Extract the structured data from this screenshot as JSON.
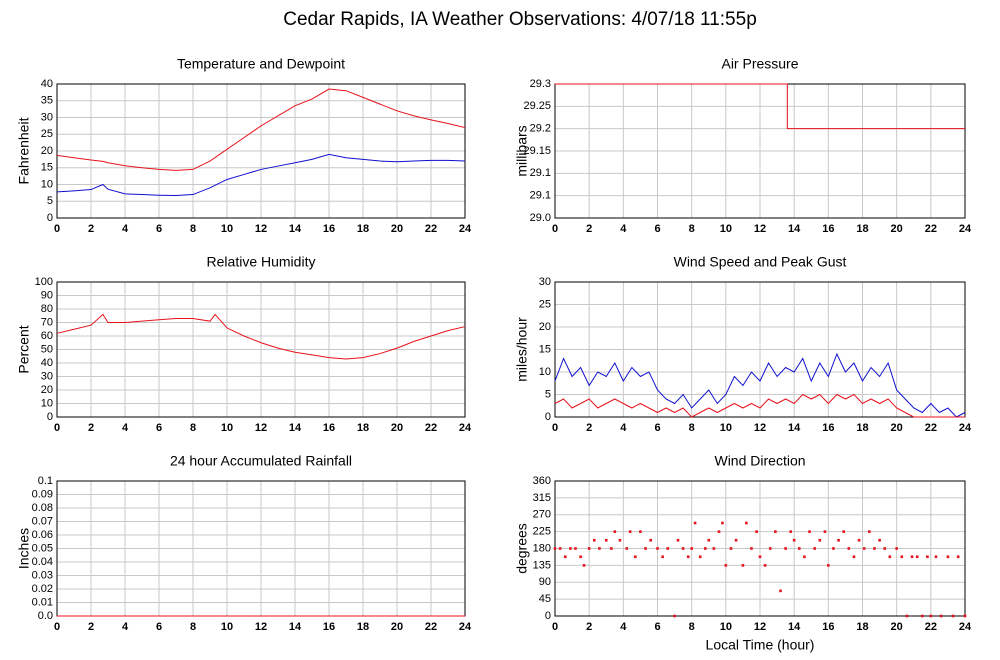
{
  "title": "Cedar Rapids, IA Weather Observations: 4/07/18 11:55p",
  "chart_data": [
    {
      "type": "line",
      "title": "Temperature and Dewpoint",
      "ylabel": "Fahrenheit",
      "x": [
        0,
        1,
        2,
        2.7,
        3,
        4,
        5,
        6,
        7,
        8,
        9,
        10,
        11,
        12,
        13,
        14,
        15,
        16,
        17,
        18,
        19,
        20,
        21,
        22,
        23,
        24
      ],
      "series": [
        {
          "color": "#e8121b",
          "values": [
            18.7,
            18,
            17.3,
            16.9,
            16.5,
            15.6,
            15,
            14.5,
            14.2,
            14.5,
            17,
            20.5,
            24,
            27.5,
            30.5,
            33.5,
            35.5,
            38.5,
            38,
            36,
            34,
            32,
            30.5,
            29.3,
            28.2,
            27
          ]
        },
        {
          "color": "#1010d0",
          "values": [
            7.8,
            8.1,
            8.5,
            10,
            8.6,
            7.2,
            7,
            6.8,
            6.7,
            7,
            9,
            11.5,
            13,
            14.5,
            15.5,
            16.5,
            17.5,
            19,
            18,
            17.5,
            17,
            16.8,
            17,
            17.2,
            17.2,
            17
          ]
        }
      ],
      "xlim": [
        0,
        24
      ],
      "xticks": [
        0,
        2,
        4,
        6,
        8,
        10,
        12,
        14,
        16,
        18,
        20,
        22,
        24
      ],
      "ylim": [
        0,
        40
      ],
      "yticks": [
        0,
        5,
        10,
        15,
        20,
        25,
        30,
        35,
        40
      ],
      "grid": true
    },
    {
      "type": "line",
      "title": "Air Pressure",
      "ylabel": "millibars",
      "x": [
        0,
        13.6,
        13.6,
        24
      ],
      "series": [
        {
          "color": "#e8121b",
          "values": [
            29.3,
            29.3,
            29.2,
            29.2
          ]
        }
      ],
      "xlim": [
        0,
        24
      ],
      "xticks": [
        0,
        2,
        4,
        6,
        8,
        10,
        12,
        14,
        16,
        18,
        20,
        22,
        24
      ],
      "ylim": [
        29,
        29.3
      ],
      "yticks": [
        {
          "value": 29,
          "label": "29.0"
        },
        {
          "value": 29.05,
          "label": "29.1"
        },
        29.1,
        29.15,
        29.2,
        29.25,
        29.3
      ],
      "grid": true
    },
    {
      "type": "line",
      "title": "Relative Humidity",
      "ylabel": "Percent",
      "x": [
        0,
        1,
        2,
        2.7,
        3,
        4,
        5,
        6,
        7,
        8,
        9,
        9.3,
        10,
        11,
        12,
        13,
        14,
        15,
        16,
        17,
        18,
        19,
        20,
        21,
        22,
        23,
        24
      ],
      "series": [
        {
          "color": "#e8121b",
          "values": [
            62,
            65,
            68,
            76,
            70,
            70,
            71,
            72,
            73,
            73,
            71,
            76,
            66,
            60,
            55,
            51,
            48,
            46,
            44,
            43,
            44,
            47,
            51,
            56,
            60,
            64,
            67
          ]
        }
      ],
      "xlim": [
        0,
        24
      ],
      "xticks": [
        0,
        2,
        4,
        6,
        8,
        10,
        12,
        14,
        16,
        18,
        20,
        22,
        24
      ],
      "ylim": [
        0,
        100
      ],
      "yticks": [
        0,
        10,
        20,
        30,
        40,
        50,
        60,
        70,
        80,
        90,
        100
      ],
      "grid": true
    },
    {
      "type": "line",
      "title": "Wind Speed and Peak Gust",
      "ylabel": "miles/hour",
      "x": [
        0,
        0.5,
        1,
        1.5,
        2,
        2.5,
        3,
        3.5,
        4,
        4.5,
        5,
        5.5,
        6,
        6.5,
        7,
        7.5,
        8,
        8.5,
        9,
        9.5,
        10,
        10.5,
        11,
        11.5,
        12,
        12.5,
        13,
        13.5,
        14,
        14.5,
        15,
        15.5,
        16,
        16.5,
        17,
        17.5,
        18,
        18.5,
        19,
        19.5,
        20,
        20.5,
        21,
        21.5,
        22,
        22.5,
        23,
        23.5,
        24
      ],
      "series": [
        {
          "color": "#1010d0",
          "values": [
            8,
            13,
            9,
            11,
            7,
            10,
            9,
            12,
            8,
            11,
            9,
            10,
            6,
            4,
            3,
            5,
            2,
            4,
            6,
            3,
            5,
            9,
            7,
            10,
            8,
            12,
            9,
            11,
            10,
            13,
            8,
            12,
            9,
            14,
            10,
            12,
            8,
            11,
            9,
            12,
            6,
            4,
            2,
            1,
            3,
            1,
            2,
            0,
            1
          ]
        },
        {
          "color": "#e8121b",
          "values": [
            3,
            4,
            2,
            3,
            4,
            2,
            3,
            4,
            3,
            2,
            3,
            2,
            1,
            2,
            1,
            2,
            0,
            1,
            2,
            1,
            2,
            3,
            2,
            3,
            2,
            4,
            3,
            4,
            3,
            5,
            4,
            5,
            3,
            5,
            4,
            5,
            3,
            4,
            3,
            4,
            2,
            1,
            0,
            0,
            0,
            0,
            0,
            0,
            0
          ]
        }
      ],
      "xlim": [
        0,
        24
      ],
      "xticks": [
        0,
        2,
        4,
        6,
        8,
        10,
        12,
        14,
        16,
        18,
        20,
        22,
        24
      ],
      "ylim": [
        0,
        30
      ],
      "yticks": [
        0,
        5,
        10,
        15,
        20,
        25,
        30
      ],
      "grid": true
    },
    {
      "type": "line",
      "title": "24 hour Accumulated Rainfall",
      "ylabel": "Inches",
      "x": [
        0,
        24
      ],
      "series": [
        {
          "color": "#e8121b",
          "values": [
            0,
            0
          ]
        }
      ],
      "xlim": [
        0,
        24
      ],
      "xticks": [
        0,
        2,
        4,
        6,
        8,
        10,
        12,
        14,
        16,
        18,
        20,
        22,
        24
      ],
      "ylim": [
        0,
        0.1
      ],
      "yticks": [
        {
          "value": 0,
          "label": "0.0"
        },
        0.01,
        0.02,
        0.03,
        0.04,
        0.05,
        0.06,
        0.07,
        0.08,
        0.09,
        0.1
      ],
      "grid": true
    },
    {
      "type": "scatter",
      "title": "Wind Direction",
      "ylabel": "degrees",
      "xlabel": "Local Time (hour)",
      "x": [
        0,
        0.3,
        0.6,
        0.9,
        1.2,
        1.5,
        1.7,
        2,
        2.3,
        2.6,
        3,
        3.3,
        3.5,
        3.8,
        4.2,
        4.4,
        4.7,
        5,
        5.3,
        5.6,
        6,
        6.3,
        6.6,
        7,
        7.2,
        7.5,
        7.8,
        8,
        8.2,
        8.5,
        8.8,
        9,
        9.3,
        9.6,
        9.8,
        10,
        10.3,
        10.6,
        11,
        11.2,
        11.5,
        11.8,
        12,
        12.3,
        12.6,
        12.9,
        13.2,
        13.5,
        13.8,
        14,
        14.3,
        14.6,
        14.9,
        15.2,
        15.5,
        15.8,
        16,
        16.3,
        16.6,
        16.9,
        17.2,
        17.5,
        17.8,
        18.1,
        18.4,
        18.7,
        19,
        19.3,
        19.6,
        20,
        20.3,
        20.6,
        20.9,
        21.2,
        21.5,
        21.8,
        22,
        22.3,
        22.6,
        23,
        23.3,
        23.6,
        24
      ],
      "series": [
        {
          "color": "#e8121b",
          "values": [
            180,
            180,
            158,
            180,
            180,
            158,
            135,
            180,
            202,
            180,
            202,
            180,
            225,
            202,
            180,
            225,
            158,
            225,
            180,
            202,
            180,
            158,
            180,
            0,
            202,
            180,
            158,
            180,
            248,
            158,
            180,
            202,
            180,
            225,
            248,
            135,
            180,
            202,
            135,
            248,
            180,
            225,
            158,
            135,
            180,
            225,
            67,
            180,
            225,
            202,
            180,
            158,
            225,
            180,
            202,
            225,
            135,
            180,
            202,
            225,
            180,
            158,
            202,
            180,
            225,
            180,
            202,
            180,
            158,
            180,
            158,
            0,
            158,
            158,
            0,
            158,
            0,
            158,
            0,
            158,
            0,
            158,
            0
          ]
        }
      ],
      "xlim": [
        0,
        24
      ],
      "xticks": [
        0,
        2,
        4,
        6,
        8,
        10,
        12,
        14,
        16,
        18,
        20,
        22,
        24
      ],
      "ylim": [
        0,
        360
      ],
      "yticks": [
        0,
        45,
        90,
        135,
        180,
        225,
        270,
        315,
        360
      ],
      "grid": true
    }
  ]
}
